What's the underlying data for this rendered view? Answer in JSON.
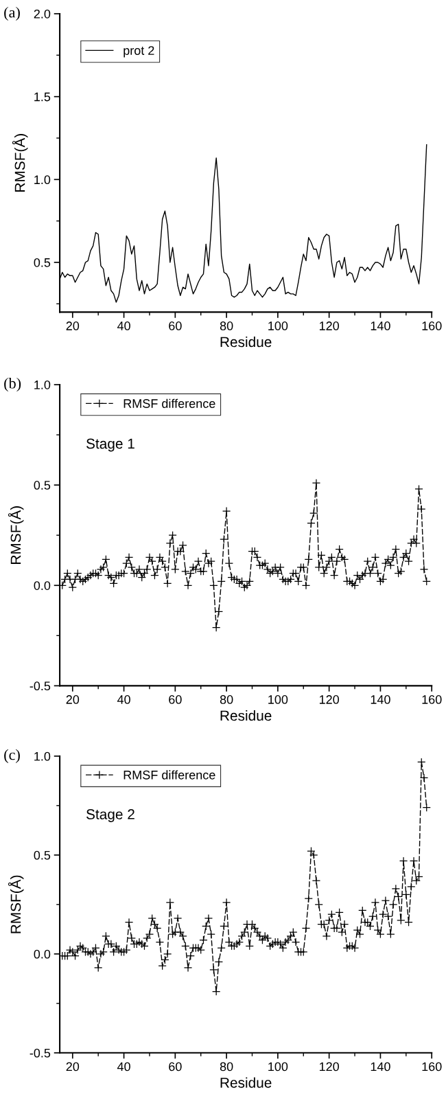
{
  "chart_data": [
    {
      "type": "line",
      "xlabel": "Residue",
      "ylabel": "RMSF(Å)",
      "annotations": [
        "(a)"
      ],
      "legend": "top left",
      "marker": "none",
      "line_style": "solid",
      "grid": false,
      "xlim": [
        15,
        160
      ],
      "xticks": [
        20,
        {
          "value": 30,
          "label": null
        },
        40,
        {
          "value": 50,
          "label": null
        },
        60,
        {
          "value": 70,
          "label": null
        },
        80,
        {
          "value": 90,
          "label": null
        },
        100,
        {
          "value": 110,
          "label": null
        },
        120,
        {
          "value": 130,
          "label": null
        },
        140,
        {
          "value": 150,
          "label": null
        },
        160
      ],
      "ylim": [
        0.2,
        2.0
      ],
      "yticks": [
        {
          "value": 0.25,
          "label": null
        },
        {
          "value": 0.5,
          "label": "0.5"
        },
        {
          "value": 0.75,
          "label": null
        },
        {
          "value": 1.0,
          "label": "1.0"
        },
        {
          "value": 1.25,
          "label": null
        },
        {
          "value": 1.5,
          "label": "1.5"
        },
        {
          "value": 1.75,
          "label": null
        },
        {
          "value": 2.0,
          "label": "2.0"
        }
      ],
      "x": [
        15,
        16,
        17,
        18,
        19,
        20,
        21,
        22,
        23,
        24,
        25,
        26,
        27,
        28,
        29,
        30,
        31,
        32,
        33,
        34,
        35,
        36,
        37,
        38,
        39,
        40,
        41,
        42,
        43,
        44,
        45,
        46,
        47,
        48,
        49,
        50,
        51,
        52,
        53,
        54,
        55,
        56,
        57,
        58,
        59,
        60,
        61,
        62,
        63,
        64,
        65,
        66,
        67,
        68,
        69,
        70,
        71,
        72,
        73,
        74,
        75,
        76,
        77,
        78,
        79,
        80,
        81,
        82,
        83,
        84,
        85,
        86,
        87,
        88,
        89,
        90,
        91,
        92,
        93,
        94,
        95,
        96,
        97,
        98,
        99,
        100,
        101,
        102,
        103,
        104,
        105,
        106,
        107,
        108,
        109,
        110,
        111,
        112,
        113,
        114,
        115,
        116,
        117,
        118,
        119,
        120,
        121,
        122,
        123,
        124,
        125,
        126,
        127,
        128,
        129,
        130,
        131,
        132,
        133,
        134,
        135,
        136,
        137,
        138,
        139,
        140,
        141,
        142,
        143,
        144,
        145,
        146,
        147,
        148,
        149,
        150,
        151,
        152,
        153,
        154,
        155,
        156,
        157,
        158
      ],
      "series": [
        {
          "name": "prot 2",
          "color": "#000000",
          "values": [
            0.4,
            0.44,
            0.41,
            0.43,
            0.42,
            0.42,
            0.38,
            0.41,
            0.44,
            0.45,
            0.5,
            0.51,
            0.57,
            0.6,
            0.68,
            0.67,
            0.48,
            0.46,
            0.36,
            0.41,
            0.33,
            0.31,
            0.26,
            0.3,
            0.39,
            0.46,
            0.66,
            0.63,
            0.55,
            0.6,
            0.4,
            0.33,
            0.39,
            0.31,
            0.37,
            0.33,
            0.34,
            0.35,
            0.37,
            0.56,
            0.76,
            0.81,
            0.72,
            0.5,
            0.59,
            0.47,
            0.36,
            0.3,
            0.35,
            0.34,
            0.43,
            0.37,
            0.31,
            0.34,
            0.38,
            0.41,
            0.43,
            0.61,
            0.48,
            0.69,
            0.98,
            1.13,
            0.94,
            0.54,
            0.44,
            0.43,
            0.4,
            0.3,
            0.29,
            0.3,
            0.32,
            0.32,
            0.34,
            0.37,
            0.49,
            0.33,
            0.3,
            0.33,
            0.31,
            0.29,
            0.31,
            0.34,
            0.35,
            0.33,
            0.33,
            0.35,
            0.38,
            0.41,
            0.31,
            0.32,
            0.31,
            0.31,
            0.3,
            0.38,
            0.47,
            0.55,
            0.51,
            0.65,
            0.62,
            0.58,
            0.58,
            0.52,
            0.6,
            0.65,
            0.67,
            0.66,
            0.5,
            0.41,
            0.5,
            0.51,
            0.46,
            0.53,
            0.42,
            0.44,
            0.43,
            0.38,
            0.41,
            0.47,
            0.47,
            0.45,
            0.47,
            0.45,
            0.48,
            0.5,
            0.5,
            0.49,
            0.47,
            0.54,
            0.59,
            0.51,
            0.56,
            0.72,
            0.73,
            0.52,
            0.58,
            0.58,
            0.5,
            0.44,
            0.48,
            0.43,
            0.37,
            0.53,
            0.87,
            1.21
          ]
        }
      ]
    },
    {
      "type": "line",
      "xlabel": "Residue",
      "ylabel": "RMSF(Å)",
      "annotations": [
        "(b)",
        "Stage 1"
      ],
      "legend": "top left",
      "marker": "cross",
      "line_style": "dashed",
      "grid": false,
      "xlim": [
        15,
        160
      ],
      "xticks": [
        20,
        {
          "value": 30,
          "label": null
        },
        40,
        {
          "value": 50,
          "label": null
        },
        60,
        {
          "value": 70,
          "label": null
        },
        80,
        {
          "value": 90,
          "label": null
        },
        100,
        {
          "value": 110,
          "label": null
        },
        120,
        {
          "value": 130,
          "label": null
        },
        140,
        {
          "value": 150,
          "label": null
        },
        160
      ],
      "ylim": [
        -0.5,
        1.0
      ],
      "yticks": [
        {
          "value": -0.5,
          "label": "-0.5"
        },
        {
          "value": -0.25,
          "label": null
        },
        {
          "value": 0.0,
          "label": "0.0"
        },
        {
          "value": 0.25,
          "label": null
        },
        {
          "value": 0.5,
          "label": "0.5"
        },
        {
          "value": 0.75,
          "label": null
        },
        {
          "value": 1.0,
          "label": "1.0"
        }
      ],
      "x": [
        16,
        17,
        18,
        19,
        20,
        21,
        22,
        23,
        24,
        25,
        26,
        27,
        28,
        29,
        30,
        31,
        32,
        33,
        34,
        35,
        36,
        37,
        38,
        39,
        40,
        41,
        42,
        43,
        44,
        45,
        46,
        47,
        48,
        49,
        50,
        51,
        52,
        53,
        54,
        55,
        56,
        57,
        58,
        59,
        60,
        61,
        62,
        63,
        64,
        65,
        66,
        67,
        68,
        69,
        70,
        71,
        72,
        73,
        74,
        75,
        76,
        77,
        78,
        79,
        80,
        81,
        82,
        83,
        84,
        85,
        86,
        87,
        88,
        89,
        90,
        91,
        92,
        93,
        94,
        95,
        96,
        97,
        98,
        99,
        100,
        101,
        102,
        103,
        104,
        105,
        106,
        107,
        108,
        109,
        110,
        111,
        112,
        113,
        114,
        115,
        116,
        117,
        118,
        119,
        120,
        121,
        122,
        123,
        124,
        125,
        126,
        127,
        128,
        129,
        130,
        131,
        132,
        133,
        134,
        135,
        136,
        137,
        138,
        139,
        140,
        141,
        142,
        143,
        144,
        145,
        146,
        147,
        148,
        149,
        150,
        151,
        152,
        153,
        154,
        155,
        156,
        157,
        158
      ],
      "series": [
        {
          "name": "RMSF difference",
          "color": "#000000",
          "values": [
            0.0,
            0.03,
            0.06,
            0.03,
            -0.01,
            0.03,
            0.06,
            0.03,
            0.02,
            0.03,
            0.04,
            0.05,
            0.06,
            0.06,
            0.05,
            0.08,
            0.09,
            0.13,
            0.05,
            0.04,
            0.01,
            0.05,
            0.05,
            0.06,
            0.06,
            0.11,
            0.14,
            0.09,
            0.06,
            0.06,
            0.08,
            0.04,
            0.06,
            0.08,
            0.14,
            0.12,
            0.05,
            0.08,
            0.14,
            0.12,
            0.09,
            0.01,
            0.21,
            0.25,
            0.08,
            0.17,
            0.17,
            0.2,
            0.07,
            0.0,
            0.06,
            0.09,
            0.08,
            0.12,
            0.07,
            0.07,
            0.16,
            0.11,
            0.12,
            0.0,
            -0.21,
            -0.13,
            0.02,
            0.23,
            0.37,
            0.11,
            0.04,
            0.03,
            0.03,
            0.01,
            0.02,
            -0.01,
            0.0,
            0.02,
            0.17,
            0.17,
            0.14,
            0.1,
            0.1,
            0.11,
            0.08,
            0.06,
            0.07,
            0.09,
            0.06,
            0.09,
            0.03,
            0.02,
            0.02,
            0.03,
            0.06,
            0.06,
            0.02,
            0.09,
            0.09,
            0.0,
            0.13,
            0.31,
            0.36,
            0.51,
            0.09,
            0.15,
            0.06,
            0.09,
            0.12,
            0.14,
            0.05,
            0.12,
            0.18,
            0.14,
            0.13,
            0.02,
            0.02,
            0.01,
            0.0,
            0.05,
            0.03,
            0.05,
            0.06,
            0.12,
            0.06,
            0.09,
            0.14,
            0.06,
            0.02,
            0.03,
            0.11,
            0.13,
            0.1,
            0.14,
            0.18,
            0.06,
            0.07,
            0.14,
            0.16,
            0.12,
            0.21,
            0.23,
            0.21,
            0.48,
            0.38,
            0.08,
            0.02
          ]
        }
      ]
    },
    {
      "type": "line",
      "xlabel": "Residue",
      "ylabel": "RMSF(Å)",
      "annotations": [
        "(c)",
        "Stage 2"
      ],
      "legend": "top left",
      "marker": "cross",
      "line_style": "dashed",
      "grid": false,
      "xlim": [
        15,
        160
      ],
      "xticks": [
        20,
        {
          "value": 30,
          "label": null
        },
        40,
        {
          "value": 50,
          "label": null
        },
        60,
        {
          "value": 70,
          "label": null
        },
        80,
        {
          "value": 90,
          "label": null
        },
        100,
        {
          "value": 110,
          "label": null
        },
        120,
        {
          "value": 130,
          "label": null
        },
        140,
        {
          "value": 150,
          "label": null
        },
        160
      ],
      "ylim": [
        -0.5,
        1.0
      ],
      "yticks": [
        {
          "value": -0.5,
          "label": "-0.5"
        },
        {
          "value": -0.25,
          "label": null
        },
        {
          "value": 0.0,
          "label": "0.0"
        },
        {
          "value": 0.25,
          "label": null
        },
        {
          "value": 0.5,
          "label": "0.5"
        },
        {
          "value": 0.75,
          "label": null
        },
        {
          "value": 1.0,
          "label": "1.0"
        }
      ],
      "x": [
        16,
        17,
        18,
        19,
        20,
        21,
        22,
        23,
        24,
        25,
        26,
        27,
        28,
        29,
        30,
        31,
        32,
        33,
        34,
        35,
        36,
        37,
        38,
        39,
        40,
        41,
        42,
        43,
        44,
        45,
        46,
        47,
        48,
        49,
        50,
        51,
        52,
        53,
        54,
        55,
        56,
        57,
        58,
        59,
        60,
        61,
        62,
        63,
        64,
        65,
        66,
        67,
        68,
        69,
        70,
        71,
        72,
        73,
        74,
        75,
        76,
        77,
        78,
        79,
        80,
        81,
        82,
        83,
        84,
        85,
        86,
        87,
        88,
        89,
        90,
        91,
        92,
        93,
        94,
        95,
        96,
        97,
        98,
        99,
        100,
        101,
        102,
        103,
        104,
        105,
        106,
        107,
        108,
        109,
        110,
        111,
        112,
        113,
        114,
        115,
        116,
        117,
        118,
        119,
        120,
        121,
        122,
        123,
        124,
        125,
        126,
        127,
        128,
        129,
        130,
        131,
        132,
        133,
        134,
        135,
        136,
        137,
        138,
        139,
        140,
        141,
        142,
        143,
        144,
        145,
        146,
        147,
        148,
        149,
        150,
        151,
        152,
        153,
        154,
        155,
        156,
        157,
        158
      ],
      "series": [
        {
          "name": "RMSF difference",
          "color": "#000000",
          "values": [
            -0.01,
            -0.01,
            -0.01,
            0.02,
            0.01,
            -0.01,
            0.02,
            0.04,
            0.03,
            0.01,
            0.01,
            0.0,
            0.01,
            0.03,
            -0.07,
            0.0,
            0.01,
            0.09,
            0.05,
            0.05,
            0.01,
            0.04,
            0.02,
            0.01,
            0.01,
            0.02,
            0.16,
            0.08,
            0.05,
            0.05,
            0.06,
            0.05,
            0.04,
            0.08,
            0.1,
            0.18,
            0.15,
            0.13,
            0.06,
            -0.06,
            -0.03,
            0.0,
            0.26,
            0.1,
            0.11,
            0.18,
            0.11,
            0.09,
            0.04,
            -0.07,
            -0.01,
            0.03,
            0.03,
            0.03,
            0.02,
            0.07,
            0.14,
            0.18,
            0.1,
            -0.08,
            -0.19,
            -0.04,
            0.03,
            0.14,
            0.26,
            0.06,
            0.04,
            0.04,
            0.05,
            0.06,
            0.09,
            0.11,
            0.15,
            0.04,
            0.15,
            0.13,
            0.11,
            0.09,
            0.07,
            0.09,
            0.08,
            0.04,
            0.05,
            0.06,
            0.06,
            0.05,
            0.03,
            0.06,
            0.07,
            0.09,
            0.11,
            0.06,
            0.01,
            0.01,
            0.01,
            0.13,
            0.28,
            0.52,
            0.5,
            0.37,
            0.25,
            0.15,
            0.15,
            0.09,
            0.17,
            0.2,
            0.13,
            0.13,
            0.21,
            0.11,
            0.15,
            0.03,
            0.04,
            0.04,
            0.03,
            0.12,
            0.1,
            0.22,
            0.16,
            0.16,
            0.14,
            0.19,
            0.26,
            0.12,
            0.1,
            0.2,
            0.27,
            0.19,
            0.1,
            0.25,
            0.33,
            0.29,
            0.17,
            0.47,
            0.3,
            0.16,
            0.34,
            0.47,
            0.37,
            0.39,
            0.97,
            0.89,
            0.74
          ]
        }
      ]
    }
  ]
}
